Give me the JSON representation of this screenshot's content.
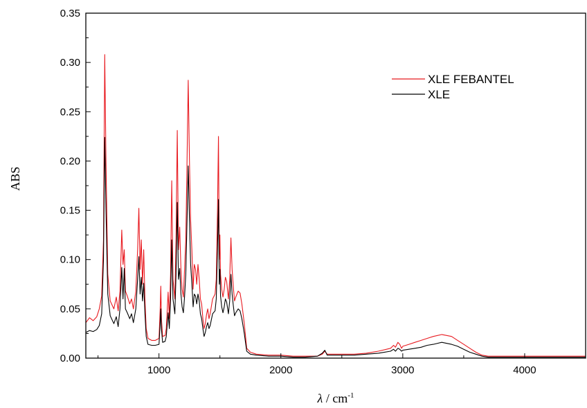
{
  "chart_data": {
    "type": "line",
    "title": "",
    "xlabel": {
      "symbol": "λ",
      "separator": " / cm",
      "superscript": "-1"
    },
    "ylabel": "ABS",
    "xlim": [
      400,
      4500
    ],
    "ylim": [
      0,
      0.35
    ],
    "x_ticks": [
      1000,
      2000,
      3000,
      4000
    ],
    "x_tick_labels": [
      "1000",
      "2000",
      "3000",
      "4000"
    ],
    "y_ticks": [
      0,
      0.05,
      0.1,
      0.15,
      0.2,
      0.25,
      0.3,
      0.35
    ],
    "y_tick_labels": [
      "0.00",
      "0.05",
      "0.10",
      "0.15",
      "0.20",
      "0.25",
      "0.30",
      "0.35"
    ],
    "grid": false,
    "legend_position": "top-right",
    "series": [
      {
        "name": "XLE FEBANTEL",
        "color": "#e8191f",
        "points": [
          [
            400,
            0.036
          ],
          [
            430,
            0.041
          ],
          [
            460,
            0.038
          ],
          [
            490,
            0.042
          ],
          [
            510,
            0.05
          ],
          [
            530,
            0.063
          ],
          [
            545,
            0.12
          ],
          [
            555,
            0.308
          ],
          [
            565,
            0.2
          ],
          [
            580,
            0.085
          ],
          [
            600,
            0.058
          ],
          [
            630,
            0.05
          ],
          [
            650,
            0.062
          ],
          [
            665,
            0.048
          ],
          [
            680,
            0.068
          ],
          [
            695,
            0.13
          ],
          [
            705,
            0.095
          ],
          [
            715,
            0.11
          ],
          [
            725,
            0.068
          ],
          [
            740,
            0.063
          ],
          [
            760,
            0.055
          ],
          [
            775,
            0.06
          ],
          [
            790,
            0.05
          ],
          [
            810,
            0.068
          ],
          [
            825,
            0.11
          ],
          [
            835,
            0.152
          ],
          [
            845,
            0.09
          ],
          [
            855,
            0.12
          ],
          [
            865,
            0.075
          ],
          [
            875,
            0.11
          ],
          [
            885,
            0.06
          ],
          [
            895,
            0.03
          ],
          [
            910,
            0.02
          ],
          [
            940,
            0.018
          ],
          [
            970,
            0.018
          ],
          [
            1000,
            0.02
          ],
          [
            1010,
            0.05
          ],
          [
            1015,
            0.073
          ],
          [
            1020,
            0.04
          ],
          [
            1030,
            0.022
          ],
          [
            1050,
            0.023
          ],
          [
            1060,
            0.03
          ],
          [
            1075,
            0.067
          ],
          [
            1085,
            0.04
          ],
          [
            1095,
            0.085
          ],
          [
            1105,
            0.18
          ],
          [
            1115,
            0.08
          ],
          [
            1130,
            0.06
          ],
          [
            1140,
            0.12
          ],
          [
            1150,
            0.231
          ],
          [
            1160,
            0.11
          ],
          [
            1170,
            0.133
          ],
          [
            1180,
            0.09
          ],
          [
            1190,
            0.07
          ],
          [
            1200,
            0.062
          ],
          [
            1210,
            0.09
          ],
          [
            1220,
            0.12
          ],
          [
            1230,
            0.2
          ],
          [
            1240,
            0.282
          ],
          [
            1250,
            0.2
          ],
          [
            1260,
            0.14
          ],
          [
            1270,
            0.11
          ],
          [
            1280,
            0.07
          ],
          [
            1290,
            0.095
          ],
          [
            1300,
            0.09
          ],
          [
            1310,
            0.075
          ],
          [
            1320,
            0.095
          ],
          [
            1330,
            0.08
          ],
          [
            1340,
            0.06
          ],
          [
            1350,
            0.055
          ],
          [
            1360,
            0.04
          ],
          [
            1370,
            0.03
          ],
          [
            1380,
            0.035
          ],
          [
            1390,
            0.044
          ],
          [
            1400,
            0.05
          ],
          [
            1410,
            0.04
          ],
          [
            1420,
            0.045
          ],
          [
            1440,
            0.06
          ],
          [
            1460,
            0.065
          ],
          [
            1470,
            0.08
          ],
          [
            1480,
            0.15
          ],
          [
            1488,
            0.225
          ],
          [
            1495,
            0.1
          ],
          [
            1500,
            0.125
          ],
          [
            1505,
            0.085
          ],
          [
            1515,
            0.07
          ],
          [
            1525,
            0.062
          ],
          [
            1535,
            0.07
          ],
          [
            1545,
            0.082
          ],
          [
            1555,
            0.078
          ],
          [
            1570,
            0.06
          ],
          [
            1580,
            0.08
          ],
          [
            1590,
            0.122
          ],
          [
            1600,
            0.09
          ],
          [
            1610,
            0.072
          ],
          [
            1620,
            0.058
          ],
          [
            1630,
            0.062
          ],
          [
            1650,
            0.068
          ],
          [
            1665,
            0.066
          ],
          [
            1680,
            0.055
          ],
          [
            1700,
            0.035
          ],
          [
            1720,
            0.01
          ],
          [
            1750,
            0.006
          ],
          [
            1800,
            0.004
          ],
          [
            1900,
            0.003
          ],
          [
            2000,
            0.003
          ],
          [
            2100,
            0.002
          ],
          [
            2200,
            0.002
          ],
          [
            2300,
            0.002
          ],
          [
            2340,
            0.004
          ],
          [
            2360,
            0.007
          ],
          [
            2380,
            0.004
          ],
          [
            2400,
            0.004
          ],
          [
            2500,
            0.004
          ],
          [
            2600,
            0.004
          ],
          [
            2700,
            0.005
          ],
          [
            2800,
            0.007
          ],
          [
            2900,
            0.01
          ],
          [
            2925,
            0.013
          ],
          [
            2940,
            0.011
          ],
          [
            2960,
            0.016
          ],
          [
            2975,
            0.014
          ],
          [
            2990,
            0.01
          ],
          [
            3000,
            0.012
          ],
          [
            3050,
            0.014
          ],
          [
            3100,
            0.016
          ],
          [
            3150,
            0.018
          ],
          [
            3200,
            0.02
          ],
          [
            3250,
            0.022
          ],
          [
            3320,
            0.024
          ],
          [
            3400,
            0.022
          ],
          [
            3450,
            0.018
          ],
          [
            3500,
            0.014
          ],
          [
            3550,
            0.01
          ],
          [
            3600,
            0.006
          ],
          [
            3650,
            0.003
          ],
          [
            3700,
            0.002
          ],
          [
            3800,
            0.002
          ],
          [
            4000,
            0.002
          ],
          [
            4200,
            0.002
          ],
          [
            4500,
            0.002
          ]
        ]
      },
      {
        "name": "XLE",
        "color": "#000000",
        "points": [
          [
            400,
            0.026
          ],
          [
            430,
            0.028
          ],
          [
            460,
            0.027
          ],
          [
            490,
            0.029
          ],
          [
            510,
            0.033
          ],
          [
            530,
            0.045
          ],
          [
            545,
            0.1
          ],
          [
            555,
            0.224
          ],
          [
            565,
            0.15
          ],
          [
            580,
            0.065
          ],
          [
            600,
            0.043
          ],
          [
            630,
            0.035
          ],
          [
            650,
            0.042
          ],
          [
            665,
            0.032
          ],
          [
            680,
            0.05
          ],
          [
            695,
            0.092
          ],
          [
            705,
            0.06
          ],
          [
            715,
            0.091
          ],
          [
            725,
            0.05
          ],
          [
            740,
            0.046
          ],
          [
            760,
            0.04
          ],
          [
            775,
            0.045
          ],
          [
            790,
            0.036
          ],
          [
            810,
            0.05
          ],
          [
            825,
            0.08
          ],
          [
            835,
            0.103
          ],
          [
            845,
            0.065
          ],
          [
            855,
            0.082
          ],
          [
            865,
            0.058
          ],
          [
            875,
            0.076
          ],
          [
            885,
            0.045
          ],
          [
            895,
            0.022
          ],
          [
            910,
            0.014
          ],
          [
            940,
            0.013
          ],
          [
            970,
            0.013
          ],
          [
            1000,
            0.014
          ],
          [
            1010,
            0.035
          ],
          [
            1015,
            0.05
          ],
          [
            1020,
            0.03
          ],
          [
            1030,
            0.016
          ],
          [
            1050,
            0.017
          ],
          [
            1060,
            0.022
          ],
          [
            1075,
            0.046
          ],
          [
            1085,
            0.03
          ],
          [
            1095,
            0.06
          ],
          [
            1105,
            0.12
          ],
          [
            1115,
            0.06
          ],
          [
            1130,
            0.045
          ],
          [
            1140,
            0.085
          ],
          [
            1150,
            0.158
          ],
          [
            1160,
            0.08
          ],
          [
            1170,
            0.091
          ],
          [
            1180,
            0.065
          ],
          [
            1190,
            0.052
          ],
          [
            1200,
            0.046
          ],
          [
            1210,
            0.062
          ],
          [
            1220,
            0.085
          ],
          [
            1230,
            0.14
          ],
          [
            1240,
            0.195
          ],
          [
            1250,
            0.14
          ],
          [
            1260,
            0.095
          ],
          [
            1270,
            0.075
          ],
          [
            1280,
            0.052
          ],
          [
            1290,
            0.065
          ],
          [
            1300,
            0.063
          ],
          [
            1310,
            0.055
          ],
          [
            1320,
            0.065
          ],
          [
            1330,
            0.058
          ],
          [
            1340,
            0.045
          ],
          [
            1350,
            0.04
          ],
          [
            1360,
            0.03
          ],
          [
            1370,
            0.022
          ],
          [
            1380,
            0.026
          ],
          [
            1390,
            0.032
          ],
          [
            1400,
            0.036
          ],
          [
            1410,
            0.03
          ],
          [
            1420,
            0.033
          ],
          [
            1440,
            0.045
          ],
          [
            1460,
            0.048
          ],
          [
            1470,
            0.06
          ],
          [
            1480,
            0.11
          ],
          [
            1488,
            0.161
          ],
          [
            1495,
            0.075
          ],
          [
            1500,
            0.09
          ],
          [
            1505,
            0.063
          ],
          [
            1515,
            0.052
          ],
          [
            1525,
            0.046
          ],
          [
            1535,
            0.052
          ],
          [
            1545,
            0.06
          ],
          [
            1555,
            0.057
          ],
          [
            1570,
            0.045
          ],
          [
            1580,
            0.058
          ],
          [
            1590,
            0.085
          ],
          [
            1600,
            0.065
          ],
          [
            1610,
            0.053
          ],
          [
            1620,
            0.043
          ],
          [
            1630,
            0.046
          ],
          [
            1650,
            0.05
          ],
          [
            1665,
            0.048
          ],
          [
            1680,
            0.04
          ],
          [
            1700,
            0.025
          ],
          [
            1720,
            0.007
          ],
          [
            1750,
            0.004
          ],
          [
            1800,
            0.003
          ],
          [
            1900,
            0.002
          ],
          [
            2000,
            0.002
          ],
          [
            2100,
            0.001
          ],
          [
            2200,
            0.001
          ],
          [
            2300,
            0.002
          ],
          [
            2340,
            0.005
          ],
          [
            2360,
            0.008
          ],
          [
            2380,
            0.003
          ],
          [
            2400,
            0.003
          ],
          [
            2500,
            0.003
          ],
          [
            2600,
            0.003
          ],
          [
            2700,
            0.004
          ],
          [
            2800,
            0.005
          ],
          [
            2900,
            0.007
          ],
          [
            2925,
            0.009
          ],
          [
            2940,
            0.007
          ],
          [
            2960,
            0.01
          ],
          [
            2975,
            0.009
          ],
          [
            2990,
            0.007
          ],
          [
            3000,
            0.008
          ],
          [
            3050,
            0.009
          ],
          [
            3100,
            0.01
          ],
          [
            3150,
            0.011
          ],
          [
            3200,
            0.013
          ],
          [
            3250,
            0.014
          ],
          [
            3320,
            0.016
          ],
          [
            3400,
            0.014
          ],
          [
            3450,
            0.012
          ],
          [
            3500,
            0.009
          ],
          [
            3550,
            0.006
          ],
          [
            3600,
            0.004
          ],
          [
            3650,
            0.002
          ],
          [
            3700,
            0.001
          ],
          [
            3800,
            0.001
          ],
          [
            4000,
            0.001
          ],
          [
            4200,
            0.001
          ],
          [
            4500,
            0.001
          ]
        ]
      }
    ]
  }
}
